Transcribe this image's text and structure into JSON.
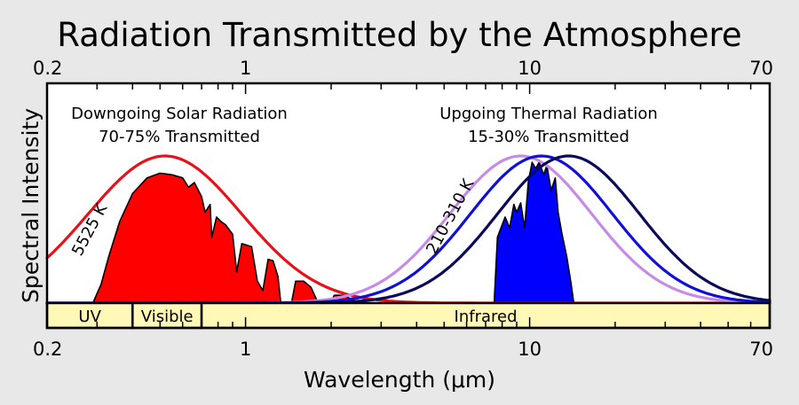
{
  "chart_data": {
    "type": "area",
    "title": "Radiation Transmitted by the Atmosphere",
    "xlabel": "Wavelength (μm)",
    "ylabel": "Spectral Intensity",
    "xscale": "log",
    "xlim": [
      0.2,
      70
    ],
    "ylim": [
      0,
      1.0
    ],
    "grid": false,
    "xticks": [
      {
        "value": 0.2,
        "label": "0.2"
      },
      {
        "value": 1,
        "label": "1"
      },
      {
        "value": 10,
        "label": "10"
      },
      {
        "value": 70,
        "label": "70"
      }
    ],
    "annotations": {
      "solar_title": "Downgoing Solar Radiation",
      "solar_pct": "70-75% Transmitted",
      "thermal_title": "Upgoing Thermal Radiation",
      "thermal_pct": "15-30% Transmitted",
      "solar_temp": "5525 K",
      "thermal_temp": "210-310 K"
    },
    "bands": [
      {
        "label": "UV",
        "from": 0.2,
        "to": 0.4
      },
      {
        "label": "Visible",
        "from": 0.4,
        "to": 0.7
      },
      {
        "label": "Infrared",
        "from": 0.7,
        "to": 70
      }
    ],
    "series": [
      {
        "kind": "blackbody",
        "temperature_K": 5525,
        "color": "#e8101a",
        "peak_x": 0.52,
        "peak_y": 0.94,
        "width": 0.27
      },
      {
        "kind": "blackbody",
        "temperature_K": 310,
        "color": "#c68be6",
        "peak_x": 9.3,
        "peak_y": 0.94,
        "width": 0.25
      },
      {
        "kind": "blackbody",
        "temperature_K": 260,
        "color": "#1010d8",
        "peak_x": 11.0,
        "peak_y": 0.94,
        "width": 0.25
      },
      {
        "kind": "blackbody",
        "temperature_K": 210,
        "color": "#0a0a5a",
        "peak_x": 13.7,
        "peak_y": 0.94,
        "width": 0.25
      },
      {
        "kind": "transmitted",
        "color": "#ff0000",
        "points": [
          [
            0.29,
            0
          ],
          [
            0.31,
            0.12
          ],
          [
            0.33,
            0.3
          ],
          [
            0.36,
            0.52
          ],
          [
            0.4,
            0.7
          ],
          [
            0.45,
            0.8
          ],
          [
            0.5,
            0.83
          ],
          [
            0.55,
            0.82
          ],
          [
            0.6,
            0.8
          ],
          [
            0.63,
            0.74
          ],
          [
            0.66,
            0.77
          ],
          [
            0.7,
            0.68
          ],
          [
            0.72,
            0.58
          ],
          [
            0.75,
            0.63
          ],
          [
            0.76,
            0.42
          ],
          [
            0.79,
            0.55
          ],
          [
            0.82,
            0.52
          ],
          [
            0.85,
            0.5
          ],
          [
            0.9,
            0.44
          ],
          [
            0.93,
            0.2
          ],
          [
            0.97,
            0.38
          ],
          [
            1.05,
            0.36
          ],
          [
            1.1,
            0.14
          ],
          [
            1.15,
            0.08
          ],
          [
            1.2,
            0.28
          ],
          [
            1.25,
            0.27
          ],
          [
            1.3,
            0.17
          ],
          [
            1.33,
            0
          ],
          [
            1.45,
            0
          ],
          [
            1.5,
            0.14
          ],
          [
            1.6,
            0.14
          ],
          [
            1.7,
            0.1
          ],
          [
            1.8,
            0
          ],
          [
            2.0,
            0
          ],
          [
            2.05,
            0.05
          ],
          [
            2.2,
            0.05
          ],
          [
            2.4,
            0.02
          ],
          [
            2.5,
            0
          ]
        ]
      },
      {
        "kind": "transmitted",
        "color": "#0000ff",
        "points": [
          [
            7.5,
            0
          ],
          [
            7.7,
            0.42
          ],
          [
            8.0,
            0.5
          ],
          [
            8.2,
            0.55
          ],
          [
            8.5,
            0.48
          ],
          [
            8.8,
            0.63
          ],
          [
            9.0,
            0.58
          ],
          [
            9.3,
            0.64
          ],
          [
            9.6,
            0.48
          ],
          [
            9.9,
            0.78
          ],
          [
            10.2,
            0.9
          ],
          [
            10.5,
            0.86
          ],
          [
            10.8,
            0.9
          ],
          [
            11.2,
            0.82
          ],
          [
            11.5,
            0.88
          ],
          [
            11.9,
            0.72
          ],
          [
            12.3,
            0.8
          ],
          [
            12.6,
            0.58
          ],
          [
            13.0,
            0.44
          ],
          [
            13.5,
            0.3
          ],
          [
            14.0,
            0.12
          ],
          [
            14.3,
            0
          ]
        ]
      }
    ]
  }
}
